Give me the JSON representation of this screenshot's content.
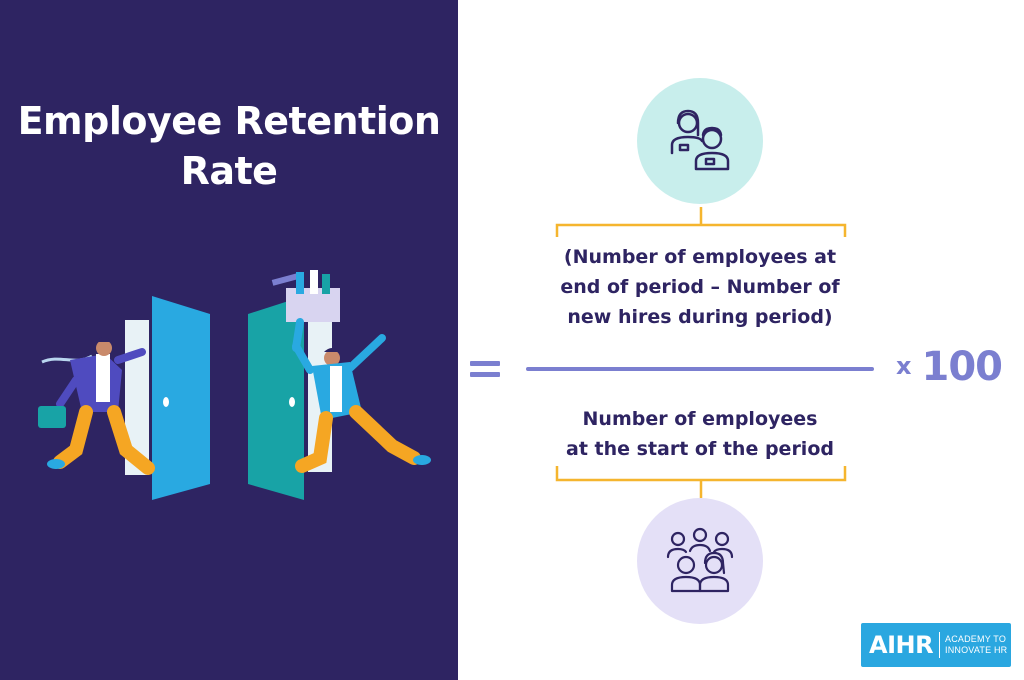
{
  "title": {
    "line1": "Employee Retention",
    "line2": "Rate"
  },
  "formula": {
    "numerator": [
      "(Number of employees at",
      "end of period – Number of",
      "new hires during period)"
    ],
    "denominator": [
      "Number of employees",
      "at the start of the period"
    ],
    "equals": "=",
    "multiply_sign": "x",
    "multiplier": "100"
  },
  "icons": {
    "top": "two-employees-icon",
    "bottom": "group-of-employees-icon",
    "illustration": "people-leaving-through-doors-illustration"
  },
  "logo": {
    "mark": "AIHR",
    "tagline_line1": "ACADEMY TO",
    "tagline_line2": "INNOVATE HR"
  },
  "colors": {
    "left_background": "#2e2462",
    "title_text": "#ffffff",
    "formula_text": "#2e2462",
    "accent_lavender": "#7b7fd0",
    "brace_orange": "#f5b52e",
    "top_circle": "#c8eeec",
    "bottom_circle": "#e4e0f7",
    "logo_blue": "#2aa7e0"
  }
}
